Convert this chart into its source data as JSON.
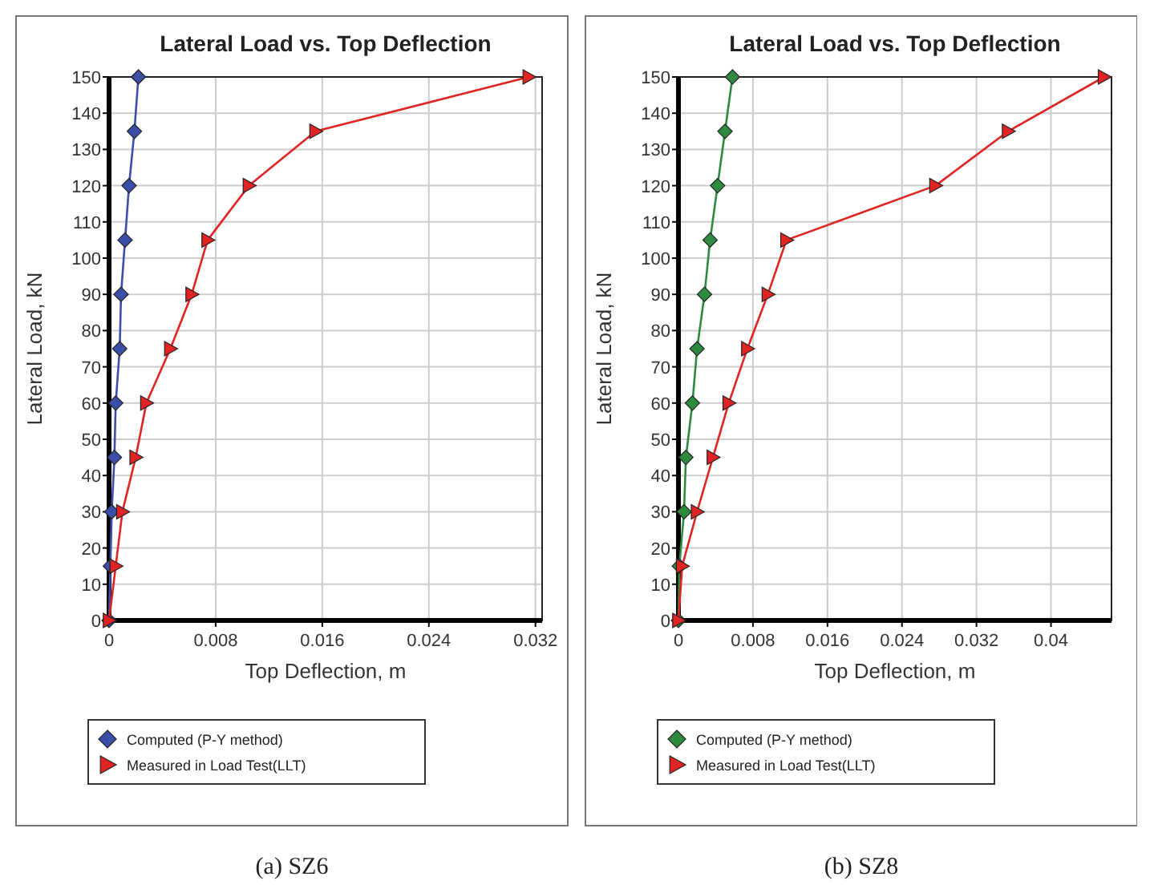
{
  "chart_data": [
    {
      "type": "line",
      "title": "Lateral Load vs. Top Deflection",
      "xlabel": "Top Deflection, m",
      "ylabel": "Lateral Load, kN",
      "xlim": [
        0,
        0.0325
      ],
      "xticks": [
        0,
        0.008,
        0.016,
        0.024,
        0.032
      ],
      "ylim": [
        0,
        150
      ],
      "yticks": [
        0,
        10,
        20,
        30,
        40,
        50,
        60,
        70,
        80,
        90,
        100,
        110,
        120,
        130,
        140,
        150
      ],
      "grid": true,
      "legend": "bottom",
      "annotations": [
        "(a) SZ6"
      ],
      "series": [
        {
          "name": "Computed (P-Y method)",
          "color": "#3b4ea8",
          "marker": "diamond",
          "x": [
            0,
            0.0001,
            0.0002,
            0.0004,
            0.0005,
            0.0008,
            0.0009,
            0.0012,
            0.0015,
            0.0019,
            0.0022
          ],
          "values": [
            0,
            15,
            30,
            45,
            60,
            75,
            90,
            105,
            120,
            135,
            150
          ]
        },
        {
          "name": "Measured in Load Test(LLT)",
          "color": "#e02424",
          "marker": "triangle",
          "x": [
            0,
            0.0005,
            0.001,
            0.002,
            0.0028,
            0.0046,
            0.0062,
            0.0074,
            0.0105,
            0.0155,
            0.0315
          ],
          "values": [
            0,
            15,
            30,
            45,
            60,
            75,
            90,
            105,
            120,
            135,
            150
          ]
        }
      ]
    },
    {
      "type": "line",
      "title": "Lateral Load vs. Top Deflection",
      "xlabel": "Top Deflection, m",
      "ylabel": "Lateral Load, kN",
      "xlim": [
        0,
        0.0465
      ],
      "xticks": [
        0,
        0.008,
        0.016,
        0.024,
        0.032,
        0.04
      ],
      "ylim": [
        0,
        150
      ],
      "yticks": [
        0,
        10,
        20,
        30,
        40,
        50,
        60,
        70,
        80,
        90,
        100,
        110,
        120,
        130,
        140,
        150
      ],
      "grid": true,
      "legend": "bottom",
      "annotations": [
        "(b) SZ8"
      ],
      "series": [
        {
          "name": "Computed (P-Y method)",
          "color": "#2e8b3e",
          "marker": "diamond",
          "x": [
            0,
            0.0001,
            0.0006,
            0.0008,
            0.0015,
            0.002,
            0.0028,
            0.0034,
            0.0042,
            0.005,
            0.0058
          ],
          "values": [
            0,
            15,
            30,
            45,
            60,
            75,
            90,
            105,
            120,
            135,
            150
          ]
        },
        {
          "name": "Measured in Load Test(LLT)",
          "color": "#e02424",
          "marker": "triangle",
          "x": [
            0,
            0.0004,
            0.002,
            0.0037,
            0.0054,
            0.0074,
            0.0096,
            0.0116,
            0.0276,
            0.0354,
            0.0457
          ],
          "values": [
            0,
            15,
            30,
            45,
            60,
            75,
            90,
            105,
            120,
            135,
            150
          ]
        }
      ]
    }
  ]
}
